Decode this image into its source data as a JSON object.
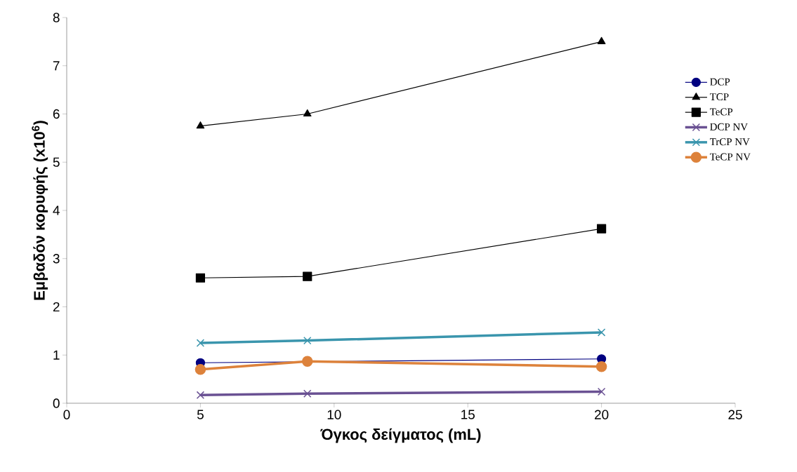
{
  "chart_data": {
    "type": "line",
    "xlabel": "Όγκος δείγματος (mL)",
    "ylabel": "Εμβαδόν κορυφής (x10$^{6}$)",
    "x": [
      5,
      9,
      20
    ],
    "series": [
      {
        "name": "DCP",
        "color": "#000080",
        "marker": "circle",
        "values": [
          0.84,
          null,
          0.92
        ]
      },
      {
        "name": "TCP",
        "color": "#000000",
        "marker": "triangle",
        "values": [
          5.75,
          6.0,
          7.5
        ]
      },
      {
        "name": "TeCP",
        "color": "#000000",
        "marker": "square",
        "values": [
          2.6,
          2.63,
          3.62
        ]
      },
      {
        "name": "DCP NV",
        "color": "#6a5193",
        "marker": "cross",
        "values": [
          0.17,
          0.2,
          0.24
        ]
      },
      {
        "name": "TrCP NV",
        "color": "#3a95ad",
        "marker": "cross",
        "values": [
          1.25,
          1.3,
          1.47
        ]
      },
      {
        "name": "TeCP NV",
        "color": "#dd823b",
        "marker": "circle",
        "values": [
          0.7,
          0.87,
          0.76
        ]
      }
    ],
    "xlim": [
      0,
      25
    ],
    "xticks": [
      0,
      5,
      10,
      15,
      20,
      25
    ],
    "ylim": [
      0,
      8
    ],
    "yticks": [
      0,
      1,
      2,
      3,
      4,
      5,
      6,
      7,
      8
    ],
    "grid": false,
    "legend": "right"
  }
}
